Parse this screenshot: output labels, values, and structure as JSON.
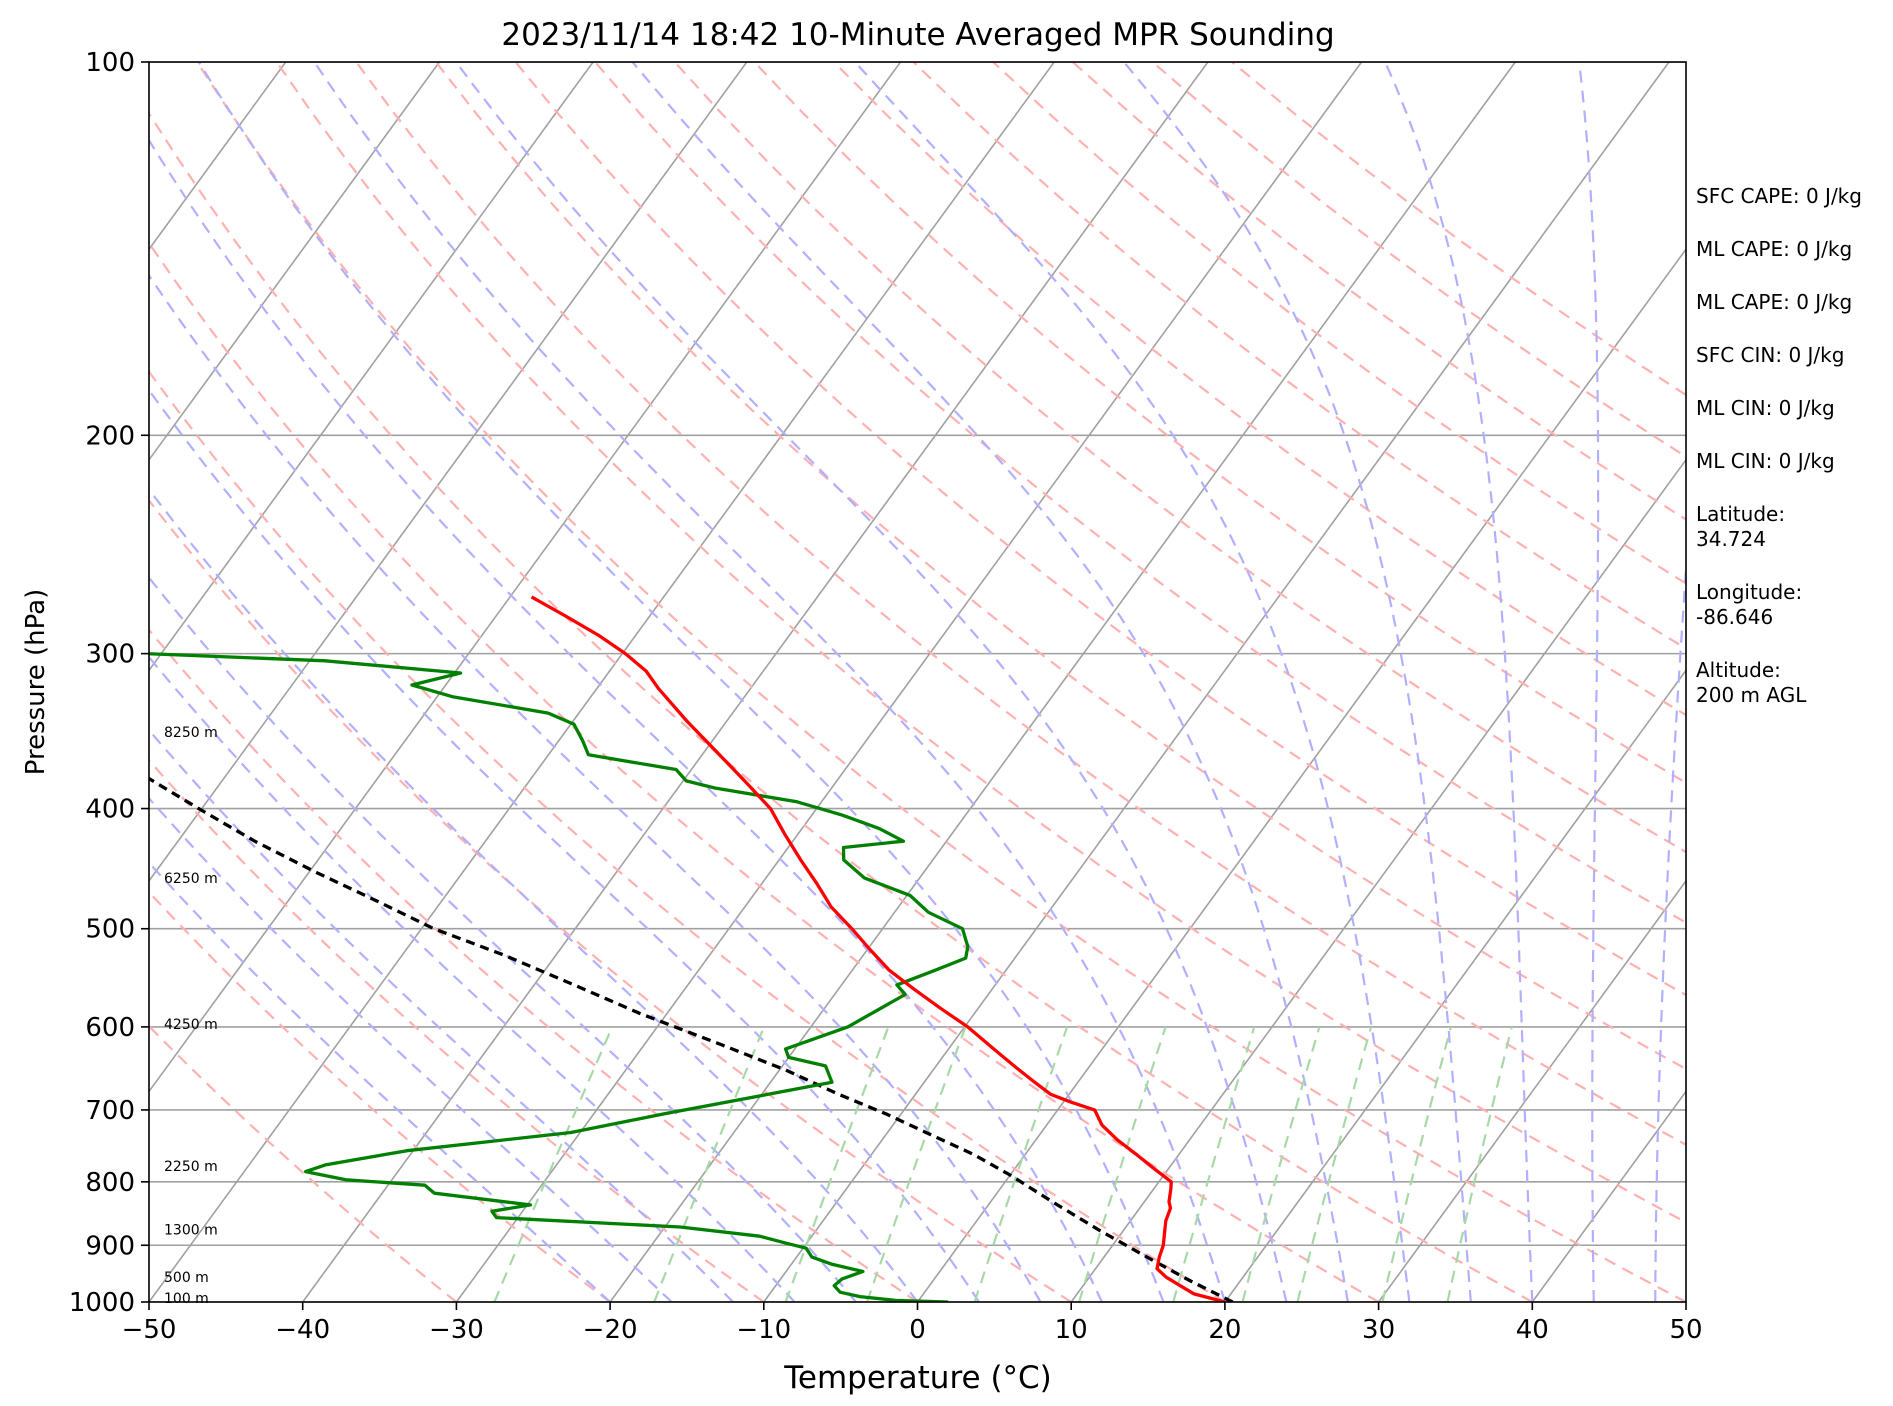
{
  "chart_data": {
    "type": "line",
    "title": "2023/11/14 18:42 10-Minute Averaged MPR Sounding",
    "xlabel": "Temperature (°C)",
    "ylabel": "Pressure (hPa)",
    "xlim": [
      -50,
      50
    ],
    "ylim": [
      1000,
      100
    ],
    "y_scale": "log",
    "skew": "skew-T",
    "grid": true,
    "x_ticks": [
      "−50",
      "−40",
      "−30",
      "−20",
      "−10",
      "0",
      "10",
      "20",
      "30",
      "40",
      "50"
    ],
    "y_ticks": [
      "100",
      "200",
      "300",
      "400",
      "500",
      "600",
      "700",
      "800",
      "900",
      "1000"
    ],
    "colors": {
      "temperature": "#ff0000",
      "dewpoint": "#008000",
      "parcel": "#000000",
      "isotherm": "#a0a0a0",
      "dry_adiabat": "#ffb0b0",
      "moist_adiabat": "#b0b0ff",
      "mixing_ratio": "#a8d8a8"
    },
    "series": [
      {
        "key": "temperature",
        "points": [
          [
            20.0,
            1000
          ],
          [
            17.6,
            985
          ],
          [
            16.3,
            970
          ],
          [
            15.0,
            955
          ],
          [
            14.0,
            940
          ],
          [
            13.6,
            920
          ],
          [
            13.3,
            900
          ],
          [
            12.8,
            880
          ],
          [
            12.3,
            860
          ],
          [
            12.0,
            840
          ],
          [
            11.6,
            830
          ],
          [
            11.1,
            810
          ],
          [
            10.8,
            800
          ],
          [
            9.0,
            780
          ],
          [
            7.2,
            760
          ],
          [
            5.3,
            740
          ],
          [
            3.6,
            720
          ],
          [
            2.4,
            700
          ],
          [
            0.5,
            690
          ],
          [
            -1.2,
            680
          ],
          [
            -2.8,
            665
          ],
          [
            -4.4,
            650
          ],
          [
            -6.0,
            635
          ],
          [
            -7.6,
            620
          ],
          [
            -9.8,
            600
          ],
          [
            -12.4,
            580
          ],
          [
            -15.0,
            560
          ],
          [
            -17.6,
            540
          ],
          [
            -19.8,
            520
          ],
          [
            -22.0,
            500
          ],
          [
            -24.4,
            480
          ],
          [
            -26.4,
            460
          ],
          [
            -28.6,
            440
          ],
          [
            -30.8,
            420
          ],
          [
            -33.0,
            400
          ],
          [
            -36.0,
            380
          ],
          [
            -39.2,
            360
          ],
          [
            -42.6,
            340
          ],
          [
            -46.0,
            320
          ],
          [
            -47.6,
            310
          ],
          [
            -49.8,
            300
          ],
          [
            -52.4,
            290
          ],
          [
            -55.4,
            280
          ],
          [
            -58.6,
            270
          ]
        ]
      },
      {
        "key": "dewpoint",
        "points": [
          [
            2.0,
            1000
          ],
          [
            -1.5,
            997
          ],
          [
            -4.0,
            990
          ],
          [
            -5.5,
            982
          ],
          [
            -6.2,
            970
          ],
          [
            -6.0,
            958
          ],
          [
            -5.0,
            945
          ],
          [
            -7.4,
            932
          ],
          [
            -9.0,
            920
          ],
          [
            -9.8,
            905
          ],
          [
            -11.6,
            895
          ],
          [
            -13.4,
            885
          ],
          [
            -19.0,
            870
          ],
          [
            -31.4,
            855
          ],
          [
            -32.0,
            845
          ],
          [
            -29.8,
            835
          ],
          [
            -36.6,
            817
          ],
          [
            -37.6,
            805
          ],
          [
            -43.0,
            797
          ],
          [
            -46.0,
            785
          ],
          [
            -45.0,
            775
          ],
          [
            -40.4,
            755
          ],
          [
            -30.6,
            730
          ],
          [
            -25.4,
            705
          ],
          [
            -16.0,
            665
          ],
          [
            -17.2,
            645
          ],
          [
            -20.0,
            635
          ],
          [
            -20.6,
            625
          ],
          [
            -17.6,
            600
          ],
          [
            -15.4,
            565
          ],
          [
            -16.4,
            555
          ],
          [
            -14.6,
            540
          ],
          [
            -13.2,
            528
          ],
          [
            -13.6,
            517
          ],
          [
            -14.8,
            500
          ],
          [
            -17.8,
            485
          ],
          [
            -19.8,
            470
          ],
          [
            -23.6,
            455
          ],
          [
            -25.8,
            440
          ],
          [
            -26.4,
            430
          ],
          [
            -22.8,
            425
          ],
          [
            -25.0,
            415
          ],
          [
            -28.0,
            405
          ],
          [
            -31.6,
            395
          ],
          [
            -37.6,
            385
          ],
          [
            -39.8,
            380
          ],
          [
            -41.0,
            372
          ],
          [
            -47.4,
            362
          ],
          [
            -48.4,
            353
          ],
          [
            -49.8,
            342
          ],
          [
            -52.0,
            335
          ],
          [
            -59.0,
            325
          ],
          [
            -62.2,
            318
          ],
          [
            -59.6,
            311
          ],
          [
            -69.0,
            304
          ],
          [
            -81.0,
            300
          ],
          [
            -91.0,
            300
          ]
        ]
      },
      {
        "key": "parcel",
        "points": [
          [
            20.5,
            1000
          ],
          [
            16.6,
            960
          ],
          [
            12.8,
            920
          ],
          [
            8.4,
            875
          ],
          [
            4.0,
            830
          ],
          [
            0.0,
            790
          ],
          [
            -3.4,
            760
          ],
          [
            -6.8,
            735
          ],
          [
            -11.0,
            705
          ],
          [
            -15.0,
            680
          ],
          [
            -19.6,
            650
          ],
          [
            -25.0,
            620
          ],
          [
            -31.8,
            585
          ],
          [
            -37.4,
            555
          ],
          [
            -43.4,
            525
          ],
          [
            -49.2,
            500
          ],
          [
            -54.2,
            475
          ],
          [
            -59.6,
            450
          ],
          [
            -65.0,
            425
          ],
          [
            -70.2,
            400
          ],
          [
            -75.6,
            375
          ],
          [
            -80.6,
            350
          ],
          [
            -85.8,
            325
          ],
          [
            -89.8,
            310
          ],
          [
            -93.6,
            295
          ],
          [
            -97.8,
            280
          ],
          [
            -100.2,
            270
          ]
        ]
      }
    ],
    "height_labels": [
      {
        "text": "8250 m",
        "p": 347
      },
      {
        "text": "6250 m",
        "p": 455
      },
      {
        "text": "4250 m",
        "p": 597
      },
      {
        "text": "2250 m",
        "p": 777
      },
      {
        "text": "1300 m",
        "p": 874
      },
      {
        "text": "500 m",
        "p": 955
      },
      {
        "text": "100 m",
        "p": 993
      }
    ]
  },
  "info_panel": {
    "items": [
      "SFC CAPE: 0 J/kg",
      "ML CAPE: 0 J/kg",
      "ML CAPE: 0 J/kg",
      "SFC CIN: 0 J/kg",
      "ML CIN: 0 J/kg",
      "ML CIN: 0 J/kg",
      "Latitude:\n34.724",
      "Longitude:\n-86.646",
      "Altitude:\n200 m AGL"
    ]
  }
}
